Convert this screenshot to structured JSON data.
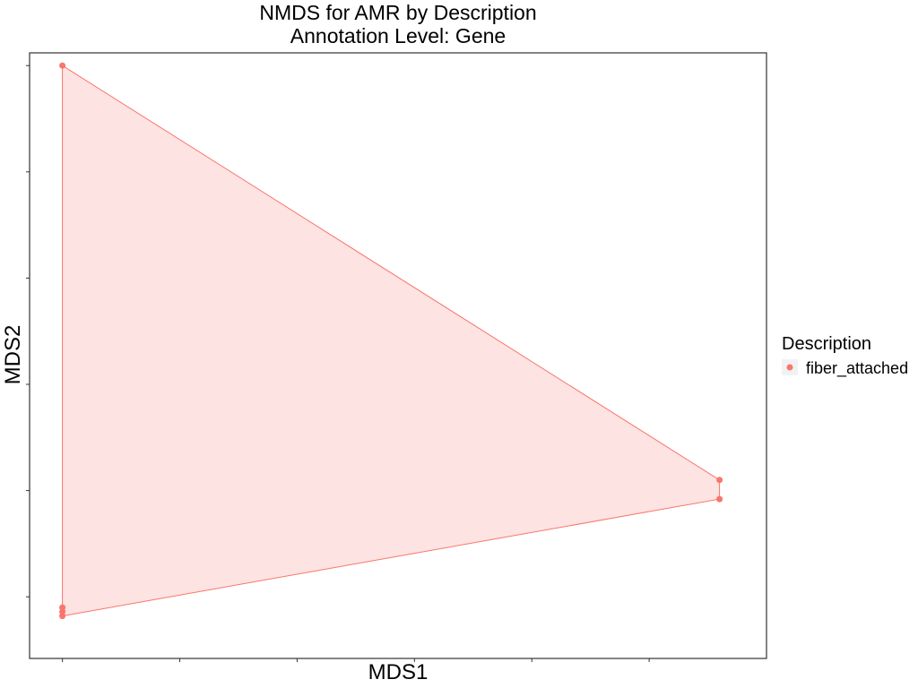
{
  "chart_data": {
    "type": "scatter",
    "title": "NMDS for AMR by Description",
    "subtitle": "Annotation Level: Gene",
    "xlabel": "MDS1",
    "ylabel": "MDS2",
    "xlim": [
      -0.14,
      3.0
    ],
    "ylim": [
      -0.29,
      2.56
    ],
    "x_ticks": [
      0,
      0.5,
      1.0,
      1.5,
      2.0,
      2.5
    ],
    "y_ticks": [
      0,
      0.5,
      1.0,
      1.5,
      2.0,
      2.5
    ],
    "tick_labels_visible": false,
    "grid": false,
    "legend": {
      "title": "Description",
      "position": "right",
      "entries": [
        {
          "label": "fiber_attached",
          "color": "#F8766D"
        }
      ]
    },
    "series": [
      {
        "name": "fiber_attached",
        "color": "#F8766D",
        "hull_fill": "#FDE3E1",
        "points": [
          {
            "x": 0.0,
            "y": 2.5
          },
          {
            "x": 2.8,
            "y": 0.55
          },
          {
            "x": 2.8,
            "y": 0.46
          },
          {
            "x": 0.0,
            "y": -0.05
          },
          {
            "x": 0.0,
            "y": -0.07
          },
          {
            "x": 0.0,
            "y": -0.09
          }
        ]
      }
    ]
  }
}
